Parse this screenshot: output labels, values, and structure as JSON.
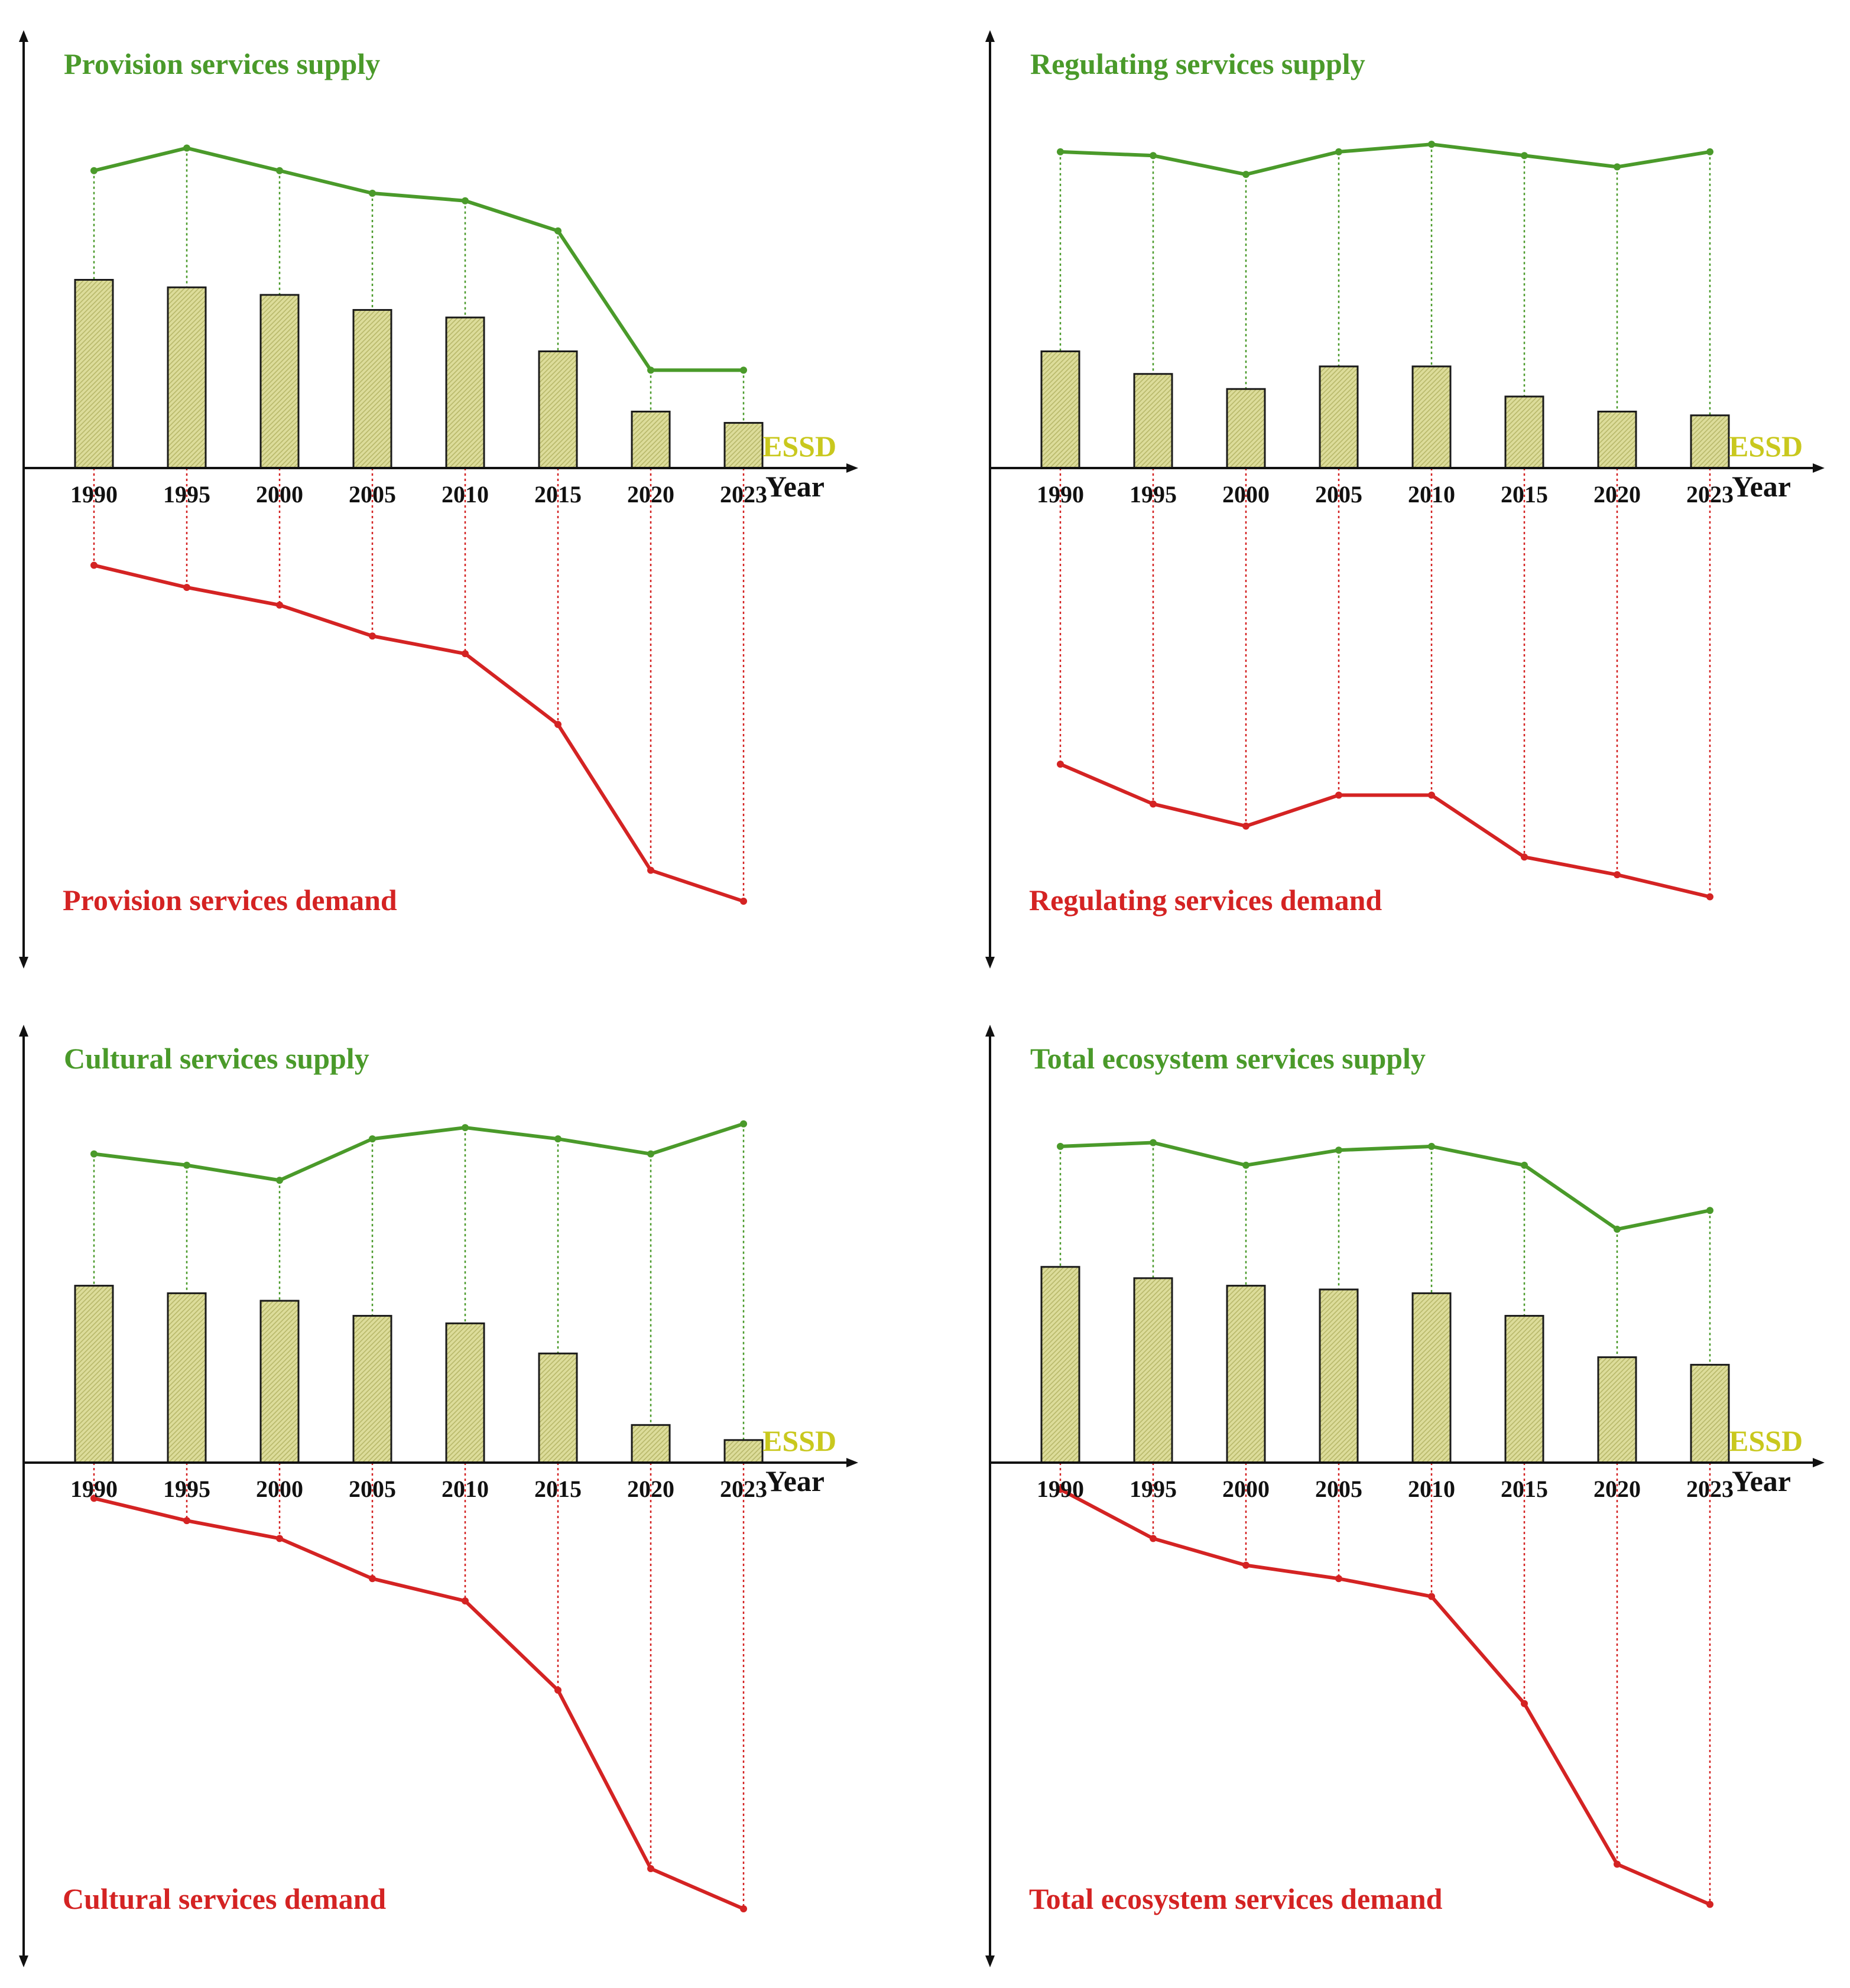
{
  "colors": {
    "supply": "#4a9a2a",
    "demand": "#d42323",
    "essd": "#c9c81e",
    "bar_fill": "#dcdc9a",
    "bar_stroke": "#1a1a1a",
    "axis": "#111111"
  },
  "chart_data": [
    {
      "type": "bar",
      "title": "Provision services",
      "supply_label": "Provision services supply",
      "demand_label": "Provision services demand",
      "essd_label": "ESSD",
      "xlabel": "Year",
      "categories": [
        "1990",
        "1995",
        "2000",
        "2005",
        "2010",
        "2015",
        "2020",
        "2023"
      ],
      "ylim": [
        -100,
        100
      ],
      "series": [
        {
          "name": "Provision services supply",
          "kind": "line",
          "values": [
            79,
            85,
            79,
            73,
            71,
            63,
            26,
            26
          ]
        },
        {
          "name": "ESSD",
          "kind": "bar",
          "values": [
            50,
            48,
            46,
            42,
            40,
            31,
            15,
            12
          ]
        },
        {
          "name": "Provision services demand",
          "kind": "line",
          "values": [
            -22,
            -27,
            -31,
            -38,
            -42,
            -58,
            -91,
            -98
          ]
        }
      ]
    },
    {
      "type": "bar",
      "title": "Regulating services",
      "supply_label": "Regulating services supply",
      "demand_label": "Regulating services demand",
      "essd_label": "ESSD",
      "xlabel": "Year",
      "categories": [
        "1990",
        "1995",
        "2000",
        "2005",
        "2010",
        "2015",
        "2020",
        "2023"
      ],
      "ylim": [
        -100,
        100
      ],
      "series": [
        {
          "name": "Regulating services supply",
          "kind": "line",
          "values": [
            84,
            83,
            78,
            84,
            86,
            83,
            80,
            84
          ]
        },
        {
          "name": "ESSD",
          "kind": "bar",
          "values": [
            31,
            25,
            21,
            27,
            27,
            19,
            15,
            14
          ]
        },
        {
          "name": "Regulating services demand",
          "kind": "line",
          "values": [
            -67,
            -76,
            -81,
            -74,
            -74,
            -88,
            -92,
            -97
          ]
        }
      ]
    },
    {
      "type": "bar",
      "title": "Cultural services",
      "supply_label": "Cultural services supply",
      "demand_label": "Cultural services demand",
      "essd_label": "ESSD",
      "xlabel": "Year",
      "categories": [
        "1990",
        "1995",
        "2000",
        "2005",
        "2010",
        "2015",
        "2020",
        "2023"
      ],
      "ylim": [
        -100,
        100
      ],
      "series": [
        {
          "name": "Cultural services supply",
          "kind": "line",
          "values": [
            82,
            79,
            75,
            86,
            89,
            86,
            82,
            90
          ]
        },
        {
          "name": "ESSD",
          "kind": "bar",
          "values": [
            47,
            45,
            43,
            39,
            37,
            29,
            10,
            6
          ]
        },
        {
          "name": "Cultural services demand",
          "kind": "line",
          "values": [
            -8,
            -13,
            -17,
            -26,
            -31,
            -51,
            -91,
            -100
          ]
        }
      ]
    },
    {
      "type": "bar",
      "title": "Total ecosystem services",
      "supply_label": "Total ecosystem services supply",
      "demand_label": "Total ecosystem services demand",
      "essd_label": "ESSD",
      "xlabel": "Year",
      "categories": [
        "1990",
        "1995",
        "2000",
        "2005",
        "2010",
        "2015",
        "2020",
        "2023"
      ],
      "ylim": [
        -100,
        100
      ],
      "series": [
        {
          "name": "Total ecosystem services supply",
          "kind": "line",
          "values": [
            84,
            85,
            79,
            83,
            84,
            79,
            62,
            67
          ]
        },
        {
          "name": "ESSD",
          "kind": "bar",
          "values": [
            52,
            49,
            47,
            46,
            45,
            39,
            28,
            26
          ]
        },
        {
          "name": "Total ecosystem services demand",
          "kind": "line",
          "values": [
            -6,
            -17,
            -23,
            -26,
            -30,
            -54,
            -90,
            -99
          ]
        }
      ]
    }
  ]
}
